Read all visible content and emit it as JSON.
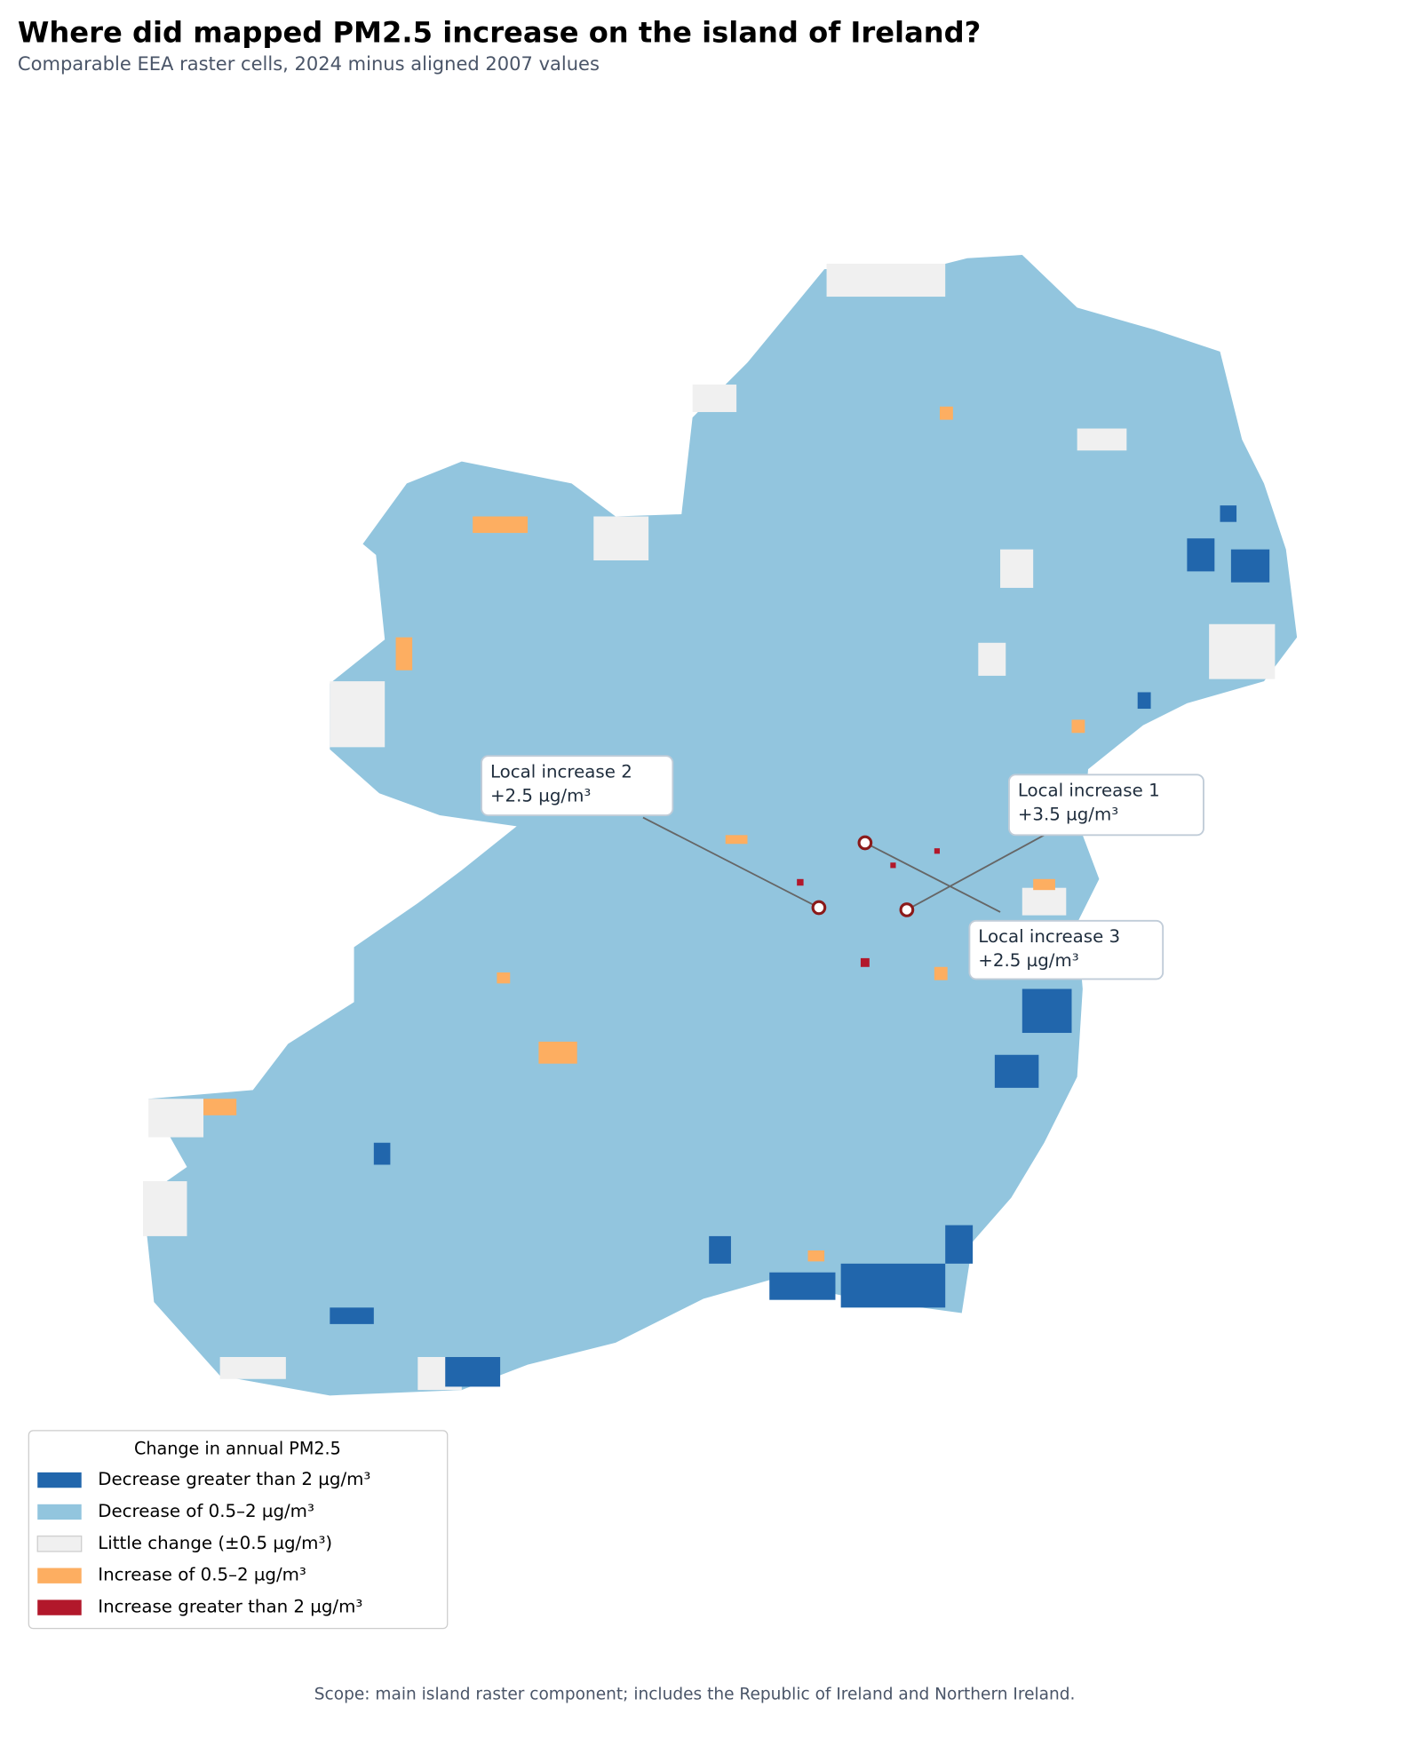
{
  "title": "Where did mapped PM2.5 increase on the island of Ireland?",
  "subtitle": "Comparable EEA raster cells, 2024 minus aligned 2007 values",
  "legend": {
    "title": "Change in annual PM2.5",
    "items": [
      {
        "label": "Decrease greater than 2 µg/m³",
        "color": "#2166ac"
      },
      {
        "label": "Decrease of 0.5–2 µg/m³",
        "color": "#92c5de"
      },
      {
        "label": "Little change (±0.5 µg/m³)",
        "color": "#f0f0f0"
      },
      {
        "label": "Increase of 0.5–2 µg/m³",
        "color": "#fdae61"
      },
      {
        "label": "Increase greater than 2 µg/m³",
        "color": "#b2182b"
      }
    ]
  },
  "annotations": [
    {
      "label": "Local increase 1",
      "value_label": "+3.5 µg/m³"
    },
    {
      "label": "Local increase 2",
      "value_label": "+2.5 µg/m³"
    },
    {
      "label": "Local increase 3",
      "value_label": "+2.5 µg/m³"
    }
  ],
  "footnote": "Scope: main island raster component; includes the Republic of Ireland and Northern Ireland."
}
